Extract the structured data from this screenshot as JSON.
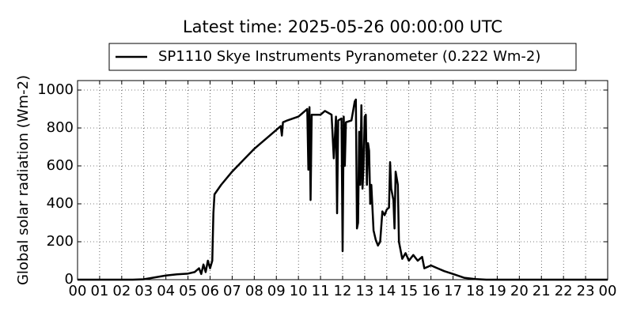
{
  "chart_data": {
    "type": "line",
    "title": "Latest time: 2025-05-26 00:00:00 UTC",
    "ylabel": "Global solar radiation (Wm-2)",
    "xlim": [
      0,
      24
    ],
    "ylim": [
      0,
      1050
    ],
    "xticks": [
      {
        "value": 0,
        "label": "00"
      },
      {
        "value": 1,
        "label": "01"
      },
      {
        "value": 2,
        "label": "02"
      },
      {
        "value": 3,
        "label": "03"
      },
      {
        "value": 4,
        "label": "04"
      },
      {
        "value": 5,
        "label": "05"
      },
      {
        "value": 6,
        "label": "06"
      },
      {
        "value": 7,
        "label": "07"
      },
      {
        "value": 8,
        "label": "08"
      },
      {
        "value": 9,
        "label": "09"
      },
      10,
      11,
      12,
      13,
      14,
      15,
      16,
      17,
      18,
      19,
      20,
      21,
      22,
      23,
      {
        "value": 24,
        "label": "00"
      }
    ],
    "yticks": [
      0,
      200,
      400,
      600,
      800,
      1000
    ],
    "grid": true,
    "x": [
      0,
      2.5,
      3,
      3.5,
      4,
      4.5,
      5,
      5.3,
      5.5,
      5.6,
      5.7,
      5.8,
      5.9,
      6.0,
      6.1,
      6.15,
      6.2,
      6.5,
      7,
      7.5,
      8,
      8.3,
      8.5,
      9,
      9.2,
      9.25,
      9.3,
      9.5,
      10,
      10.2,
      10.4,
      10.45,
      10.5,
      10.55,
      10.6,
      11,
      11.2,
      11.5,
      11.6,
      11.7,
      11.75,
      11.8,
      11.95,
      12.0,
      12.05,
      12.1,
      12.15,
      12.4,
      12.55,
      12.6,
      12.65,
      12.7,
      12.75,
      12.8,
      12.85,
      12.9,
      12.95,
      13.0,
      13.05,
      13.1,
      13.15,
      13.2,
      13.25,
      13.3,
      13.4,
      13.5,
      13.6,
      13.7,
      13.8,
      13.9,
      14.0,
      14.1,
      14.15,
      14.2,
      14.3,
      14.35,
      14.4,
      14.5,
      14.55,
      14.7,
      14.85,
      15.0,
      15.2,
      15.4,
      15.6,
      15.7,
      16,
      16.3,
      16.6,
      17,
      17.5,
      18,
      18.5,
      24
    ],
    "series": [
      {
        "name": "SP1110 Skye Instruments Pyranometer (0.222 Wm-2)",
        "color": "#000000",
        "values": [
          0,
          0,
          2,
          12,
          22,
          28,
          32,
          40,
          60,
          30,
          80,
          40,
          100,
          60,
          100,
          350,
          450,
          500,
          570,
          630,
          690,
          720,
          740,
          790,
          810,
          760,
          830,
          840,
          860,
          880,
          900,
          580,
          910,
          420,
          870,
          870,
          890,
          870,
          640,
          860,
          350,
          840,
          850,
          150,
          860,
          600,
          830,
          840,
          940,
          950,
          270,
          300,
          780,
          500,
          920,
          480,
          600,
          860,
          870,
          500,
          720,
          680,
          400,
          500,
          260,
          210,
          180,
          200,
          360,
          340,
          370,
          380,
          620,
          480,
          420,
          270,
          570,
          500,
          200,
          110,
          140,
          100,
          130,
          100,
          120,
          60,
          75,
          60,
          45,
          30,
          10,
          3,
          0,
          0
        ]
      }
    ]
  }
}
